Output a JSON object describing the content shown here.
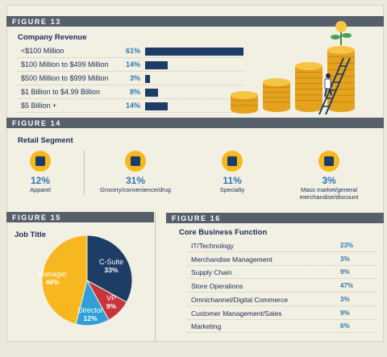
{
  "figure13": {
    "header": "FIGURE 13",
    "title": "Company Revenue",
    "chart_data": {
      "type": "bar",
      "categories": [
        "<$100 Million",
        "$100 Million to $499 Million",
        "$500 Million to $999 Million",
        "$1 Billion to $4.99 Billion",
        "$5 Billion +"
      ],
      "values": [
        61,
        14,
        3,
        8,
        14
      ],
      "labels": [
        "61%",
        "14%",
        "3%",
        "8%",
        "14%"
      ],
      "color": "#1d3d66"
    }
  },
  "figure14": {
    "header": "FIGURE 14",
    "title": "Retail Segment",
    "chart_data": {
      "type": "table",
      "items": [
        {
          "pct": "12%",
          "label": "Apparel",
          "icon": "shirt-icon"
        },
        {
          "pct": "31%",
          "label": "Grocery/convenience/drug",
          "icon": "basket-icon"
        },
        {
          "pct": "11%",
          "label": "Specialty",
          "icon": "gift-icon"
        },
        {
          "pct": "3%",
          "label": "Mass market/general merchandise/discount",
          "icon": "shopping-bag-icon"
        }
      ]
    }
  },
  "figure15": {
    "header": "FIGURE 15",
    "title": "Job Title",
    "chart_data": {
      "type": "pie",
      "slices": [
        {
          "name": "C-Suite",
          "value": 33,
          "label": "33%",
          "color": "#1d3d66"
        },
        {
          "name": "VP",
          "value": 9,
          "label": "9%",
          "color": "#c8333c"
        },
        {
          "name": "Director",
          "value": 12,
          "label": "12%",
          "color": "#2f9fd8"
        },
        {
          "name": "Manager",
          "value": 46,
          "label": "46%",
          "color": "#f7b81f"
        }
      ]
    }
  },
  "figure16": {
    "header": "FIGURE 16",
    "title": "Core Business Function",
    "chart_data": {
      "type": "table",
      "rows": [
        {
          "label": "IT/Technology",
          "value": "23%"
        },
        {
          "label": "Merchandise Management",
          "value": "3%"
        },
        {
          "label": "Supply Chain",
          "value": "9%"
        },
        {
          "label": "Store Operations",
          "value": "47%"
        },
        {
          "label": "Omnichannel/Digital Commerce",
          "value": "3%"
        },
        {
          "label": "Customer Management/Sales",
          "value": "9%"
        },
        {
          "label": "Marketing",
          "value": "6%"
        }
      ]
    }
  },
  "illustration": {
    "coin_color": "#f2b624",
    "ladder_color": "#1d3d66"
  }
}
